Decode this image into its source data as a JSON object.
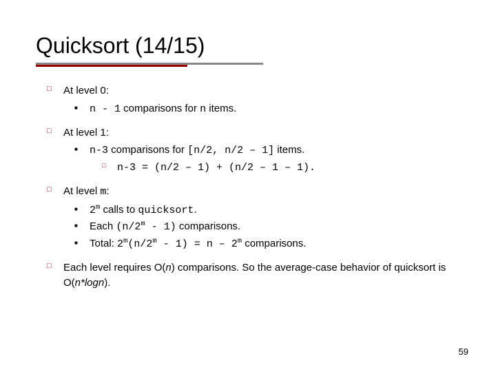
{
  "title": "Quicksort (14/15)",
  "colors": {
    "underline_gray": "#888888",
    "underline_red": "#990000",
    "bullet_red": "#990000",
    "text": "#000000",
    "background": "#ffffff"
  },
  "typography": {
    "title_fontsize": 32,
    "body_fontsize": 15,
    "mono_family": "Courier New",
    "body_family": "Verdana"
  },
  "b1": "At level 0:",
  "b1a_pre": "n - 1",
  "b1a_mid": " comparisons for ",
  "b1a_n": "n",
  "b1a_post": " items.",
  "b2": "At level 1:",
  "b2a_pre": "n-3",
  "b2a_mid": " comparisons for ",
  "b2a_bracket": "[n/2, n/2 – 1]",
  "b2a_post": " items.",
  "b2a1": "n-3 = (n/2 – 1) + (n/2 – 1 – 1).",
  "b3_pre": "At level ",
  "b3_m": "m",
  "b3_post": ":",
  "b3a_pre": "2",
  "b3a_sup": "m",
  "b3a_mid": " calls to ",
  "b3a_code": "quicksort",
  "b3a_post": ".",
  "b3b_pre": "Each ",
  "b3b_code1": "(n/2",
  "b3b_sup": "m",
  "b3b_code2": " - 1)",
  "b3b_post": " comparisons.",
  "b3c_pre": "Total: ",
  "b3c_c1": "2",
  "b3c_s1": "m",
  "b3c_c2": "(n/2",
  "b3c_s2": "m",
  "b3c_c3": " - 1) = n – 2",
  "b3c_s3": "m",
  "b3c_post": " comparisons.",
  "b4_a": "Each level requires O(",
  "b4_n": "n",
  "b4_b": ") comparisons. So the average-case behavior of quicksort is O(",
  "b4_nlogn": "n*logn",
  "b4_c": ").",
  "pagenum": "59"
}
